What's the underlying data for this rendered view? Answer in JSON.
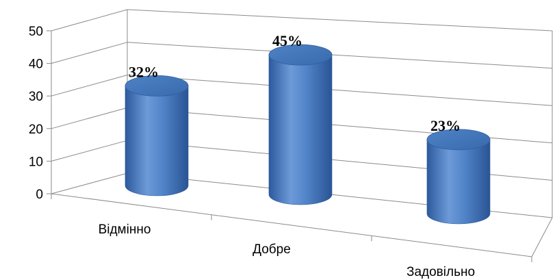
{
  "chart_data": {
    "type": "bar",
    "style": "3d-cylinder",
    "categories": [
      "Відмінно",
      "Добре",
      "Задовільно"
    ],
    "values": [
      32,
      45,
      23
    ],
    "data_labels": [
      "32%",
      "45%",
      "23%"
    ],
    "ylim": [
      0,
      50
    ],
    "yticks": [
      "0",
      "10",
      "20",
      "30",
      "40",
      "50"
    ],
    "grid": true,
    "legend": "none",
    "colors": {
      "bar": "#4a7ec4",
      "bar_dark": "#2a5494",
      "bar_light": "#7ea6e0",
      "top": "#3f6fb3",
      "grid": "#8a8a8a"
    }
  }
}
